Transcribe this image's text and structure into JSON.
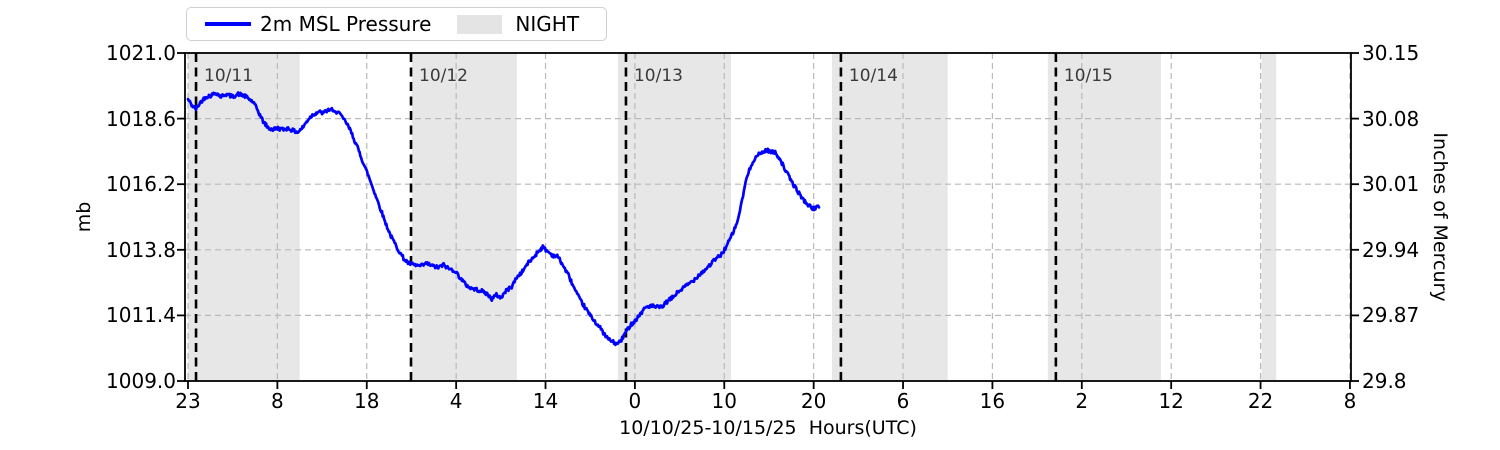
{
  "legend": {
    "series_label": "2m MSL Pressure",
    "night_label": "NIGHT"
  },
  "chart_data": {
    "type": "line",
    "x_label": "10/10/25-10/15/25  Hours(UTC)",
    "x_range_hours": [
      -0.35,
      130.1
    ],
    "x_ticks": {
      "hours": [
        0,
        10,
        20,
        30,
        40,
        50,
        60,
        70,
        80,
        90,
        100,
        110,
        120,
        130
      ],
      "labels": [
        "23",
        "8",
        "18",
        "4",
        "14",
        "0",
        "10",
        "20",
        "6",
        "16",
        "2",
        "12",
        "22",
        "8"
      ]
    },
    "y_left": {
      "label": "mb",
      "range": [
        1009.0,
        1021.0
      ],
      "tick_values": [
        1021.0,
        1018.6,
        1016.2,
        1013.8,
        1011.4,
        1009.0
      ],
      "tick_labels": [
        "1021.0",
        "1018.6",
        "1016.2",
        "1013.8",
        "1011.4",
        "1009.0"
      ]
    },
    "y_right": {
      "label": "Inches of Mercury",
      "tick_labels": [
        "30.15",
        "30.08",
        "30.01",
        "29.94",
        "29.87",
        "29.8"
      ]
    },
    "date_lines": [
      {
        "label": "10/11",
        "hour": 0.9
      },
      {
        "label": "10/12",
        "hour": 24.95
      },
      {
        "label": "10/13",
        "hour": 49.0
      },
      {
        "label": "10/14",
        "hour": 73.05
      },
      {
        "label": "10/15",
        "hour": 97.1
      }
    ],
    "night_bands_hours": [
      [
        0,
        12.5
      ],
      [
        25.05,
        36.8
      ],
      [
        48.1,
        60.75
      ],
      [
        72.05,
        85.0
      ],
      [
        96.2,
        108.85
      ],
      [
        120.1,
        121.75
      ]
    ],
    "colors": {
      "line": "#0000ff",
      "night_band": "#e7e7e7",
      "grid": "#b9b9b9",
      "date_line": "#000000",
      "date_label": "#3a3a3a"
    },
    "series": [
      {
        "name": "2m MSL Pressure",
        "color": "#0000ff",
        "points_hour_mb": [
          [
            0,
            1019.3
          ],
          [
            0.4,
            1019.1
          ],
          [
            0.9,
            1018.95
          ],
          [
            1.4,
            1019.2
          ],
          [
            2,
            1019.4
          ],
          [
            2.6,
            1019.45
          ],
          [
            3.1,
            1019.55
          ],
          [
            3.7,
            1019.4
          ],
          [
            4.2,
            1019.5
          ],
          [
            5,
            1019.4
          ],
          [
            5.6,
            1019.5
          ],
          [
            6.2,
            1019.45
          ],
          [
            6.7,
            1019.35
          ],
          [
            7.3,
            1019.2
          ],
          [
            7.8,
            1018.9
          ],
          [
            8.4,
            1018.5
          ],
          [
            9,
            1018.25
          ],
          [
            9.5,
            1018.2
          ],
          [
            10,
            1018.25
          ],
          [
            10.6,
            1018.2
          ],
          [
            11.2,
            1018.25
          ],
          [
            11.8,
            1018.15
          ],
          [
            12.3,
            1018.1
          ],
          [
            12.9,
            1018.3
          ],
          [
            13.5,
            1018.6
          ],
          [
            14,
            1018.75
          ],
          [
            14.6,
            1018.85
          ],
          [
            15.1,
            1018.8
          ],
          [
            15.6,
            1018.9
          ],
          [
            16,
            1018.95
          ],
          [
            16.4,
            1018.8
          ],
          [
            16.8,
            1018.9
          ],
          [
            17.2,
            1018.65
          ],
          [
            17.7,
            1018.45
          ],
          [
            18.2,
            1018.15
          ],
          [
            18.7,
            1017.75
          ],
          [
            19.2,
            1017.35
          ],
          [
            19.7,
            1016.9
          ],
          [
            20.2,
            1016.5
          ],
          [
            20.7,
            1016.05
          ],
          [
            21.2,
            1015.6
          ],
          [
            21.7,
            1015.15
          ],
          [
            22.2,
            1014.7
          ],
          [
            22.7,
            1014.3
          ],
          [
            23.2,
            1014.0
          ],
          [
            23.7,
            1013.7
          ],
          [
            24.2,
            1013.45
          ],
          [
            24.7,
            1013.3
          ],
          [
            25.2,
            1013.25
          ],
          [
            26,
            1013.2
          ],
          [
            26.7,
            1013.3
          ],
          [
            27.4,
            1013.2
          ],
          [
            28,
            1013.15
          ],
          [
            28.6,
            1013.25
          ],
          [
            29.2,
            1013.1
          ],
          [
            29.8,
            1013.05
          ],
          [
            30.4,
            1012.8
          ],
          [
            31,
            1012.55
          ],
          [
            31.6,
            1012.4
          ],
          [
            32.2,
            1012.35
          ],
          [
            32.8,
            1012.3
          ],
          [
            33.4,
            1012.2
          ],
          [
            34,
            1012.0
          ],
          [
            34.5,
            1012.15
          ],
          [
            35,
            1012.05
          ],
          [
            35.6,
            1012.3
          ],
          [
            36.2,
            1012.45
          ],
          [
            36.8,
            1012.8
          ],
          [
            37.4,
            1013.0
          ],
          [
            38,
            1013.3
          ],
          [
            38.6,
            1013.5
          ],
          [
            39.2,
            1013.75
          ],
          [
            39.7,
            1013.9
          ],
          [
            40.2,
            1013.75
          ],
          [
            40.8,
            1013.6
          ],
          [
            41.4,
            1013.55
          ],
          [
            42,
            1013.2
          ],
          [
            42.6,
            1012.85
          ],
          [
            43.2,
            1012.4
          ],
          [
            43.8,
            1012.0
          ],
          [
            44.4,
            1011.7
          ],
          [
            45,
            1011.4
          ],
          [
            45.6,
            1011.15
          ],
          [
            46.2,
            1010.9
          ],
          [
            46.8,
            1010.6
          ],
          [
            47.4,
            1010.45
          ],
          [
            48,
            1010.35
          ],
          [
            48.5,
            1010.5
          ],
          [
            49,
            1010.8
          ],
          [
            49.5,
            1011.05
          ],
          [
            50,
            1011.2
          ],
          [
            50.6,
            1011.45
          ],
          [
            51.2,
            1011.7
          ],
          [
            51.8,
            1011.75
          ],
          [
            52.4,
            1011.7
          ],
          [
            53,
            1011.7
          ],
          [
            53.6,
            1011.9
          ],
          [
            54.2,
            1012.05
          ],
          [
            54.8,
            1012.25
          ],
          [
            55.4,
            1012.4
          ],
          [
            56,
            1012.55
          ],
          [
            56.6,
            1012.7
          ],
          [
            57.2,
            1012.9
          ],
          [
            57.8,
            1013.05
          ],
          [
            58.4,
            1013.25
          ],
          [
            59,
            1013.45
          ],
          [
            59.6,
            1013.6
          ],
          [
            60.2,
            1013.9
          ],
          [
            60.8,
            1014.3
          ],
          [
            61.4,
            1014.75
          ],
          [
            62,
            1015.6
          ],
          [
            62.4,
            1016.3
          ],
          [
            62.8,
            1016.7
          ],
          [
            63.2,
            1017.05
          ],
          [
            63.7,
            1017.25
          ],
          [
            64.2,
            1017.35
          ],
          [
            64.7,
            1017.45
          ],
          [
            65.2,
            1017.4
          ],
          [
            65.7,
            1017.35
          ],
          [
            66.2,
            1017.15
          ],
          [
            66.7,
            1016.8
          ],
          [
            67.2,
            1016.5
          ],
          [
            67.7,
            1016.2
          ],
          [
            68.2,
            1015.95
          ],
          [
            68.7,
            1015.7
          ],
          [
            69.2,
            1015.5
          ],
          [
            69.7,
            1015.35
          ],
          [
            70.2,
            1015.3
          ],
          [
            70.6,
            1015.4
          ]
        ]
      }
    ]
  }
}
